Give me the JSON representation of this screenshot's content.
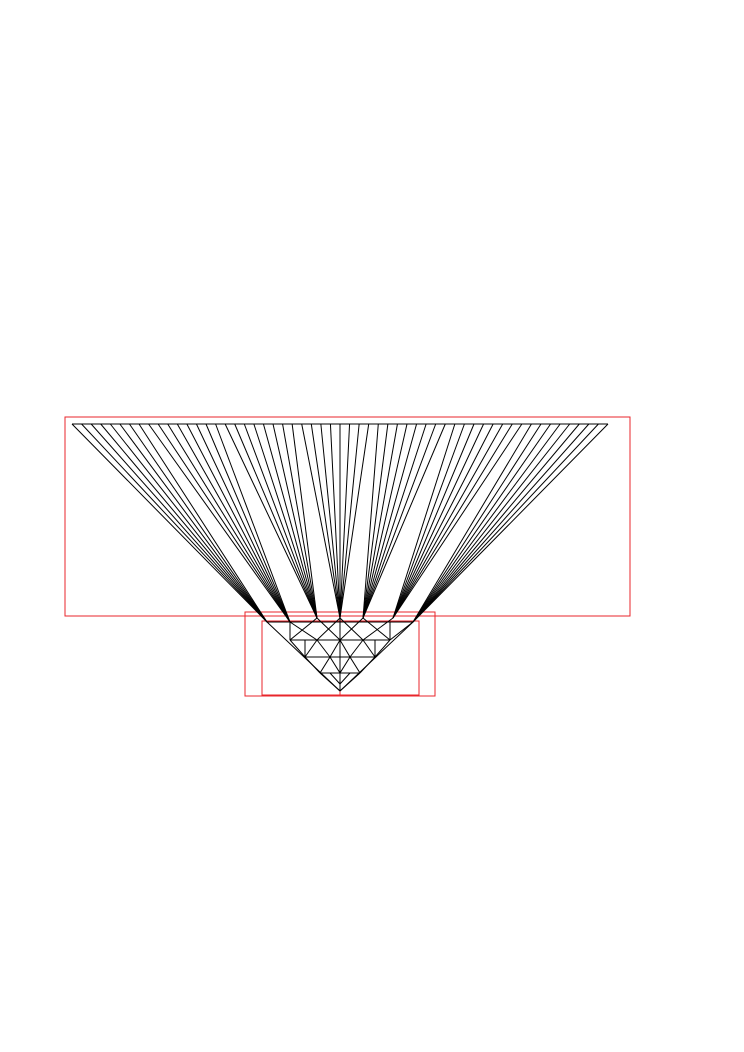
{
  "figure": {
    "background": "#ffffff",
    "line_color": "#000000",
    "box_color": "#e8262b",
    "fan_lines_per_group": 8,
    "fan_groups": 7,
    "text": []
  }
}
